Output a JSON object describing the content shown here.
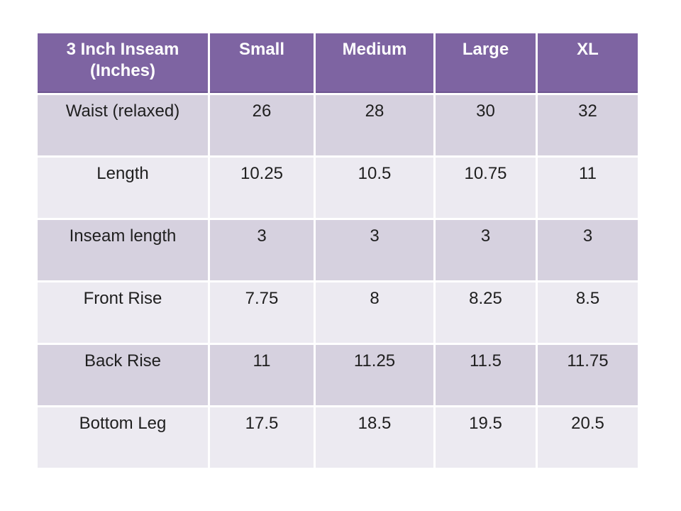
{
  "page": {
    "background": "#FFFFFF"
  },
  "colors": {
    "header_bg": "#7E64A2",
    "header_text": "#FFFFFF",
    "header_edge": "#6D5590",
    "band_dark": "#D6D1DF",
    "band_light": "#ECEAF1",
    "body_text": "#1F1F1F",
    "grid_gap": "#FFFFFF"
  },
  "chart_data": {
    "type": "table",
    "columns": [
      "3 Inch Inseam\n(Inches)",
      "Small",
      "Medium",
      "Large",
      "XL"
    ],
    "rows": [
      [
        "Waist (relaxed)",
        "26",
        "28",
        "30",
        "32"
      ],
      [
        "Length",
        "10.25",
        "10.5",
        "10.75",
        "11"
      ],
      [
        "Inseam length",
        "3",
        "3",
        "3",
        "3"
      ],
      [
        "Front Rise",
        "7.75",
        "8",
        "8.25",
        "8.5"
      ],
      [
        "Back Rise",
        "11",
        "11.25",
        "11.5",
        "11.75"
      ],
      [
        "Bottom Leg",
        "17.5",
        "18.5",
        "19.5",
        "20.5"
      ]
    ],
    "layout": {
      "banded_rows": true,
      "header_fill": "#7E64A2",
      "units": "inches"
    }
  }
}
